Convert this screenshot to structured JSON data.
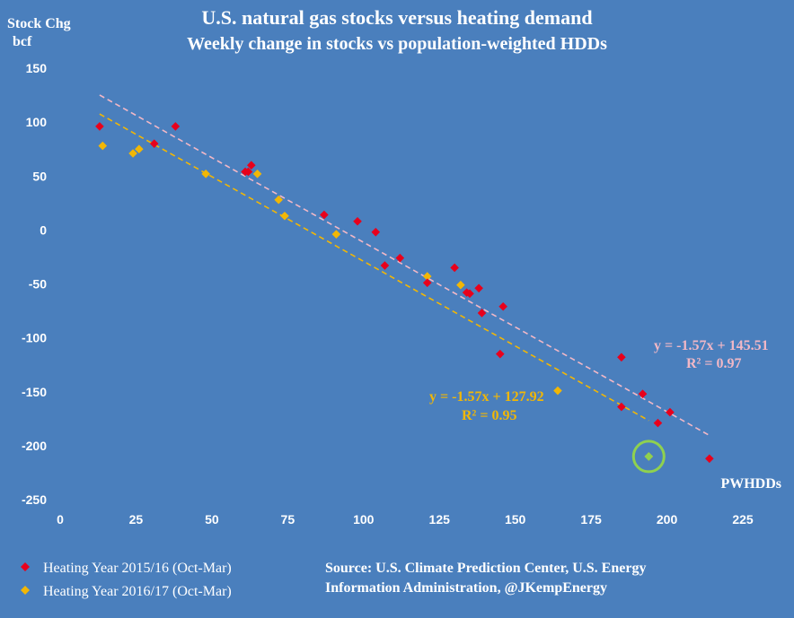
{
  "chart_data": {
    "type": "scatter",
    "title": "U.S. natural gas stocks versus heating demand",
    "subtitle": "Weekly change in stocks vs population-weighted HDDs",
    "ylabel_line1": "Stock Chg",
    "ylabel_line2": "bcf",
    "xlabel": "PWHDDs",
    "xlim": [
      0,
      225
    ],
    "ylim": [
      -250,
      150
    ],
    "x_ticks": [
      0,
      25,
      50,
      75,
      100,
      125,
      150,
      175,
      200,
      225
    ],
    "y_ticks": [
      150,
      100,
      50,
      0,
      -50,
      -100,
      -150,
      -200,
      -250
    ],
    "grid": false,
    "legend_position": "bottom-left",
    "series": [
      {
        "name": "Heating Year 2015/16 (Oct-Mar)",
        "color": "#e8001c",
        "marker": "diamond",
        "points": [
          [
            13,
            96
          ],
          [
            31,
            80
          ],
          [
            38,
            96
          ],
          [
            61,
            54
          ],
          [
            62,
            54
          ],
          [
            63,
            60
          ],
          [
            87,
            14
          ],
          [
            98,
            8
          ],
          [
            104,
            -2
          ],
          [
            107,
            -33
          ],
          [
            112,
            -26
          ],
          [
            121,
            -49
          ],
          [
            130,
            -35
          ],
          [
            134,
            -58
          ],
          [
            135,
            -59
          ],
          [
            138,
            -54
          ],
          [
            139,
            -77
          ],
          [
            145,
            -115
          ],
          [
            146,
            -71
          ],
          [
            185,
            -118
          ],
          [
            185,
            -164
          ],
          [
            192,
            -152
          ],
          [
            197,
            -179
          ],
          [
            201,
            -169
          ],
          [
            214,
            -212
          ]
        ],
        "trendline": {
          "slope": -1.57,
          "intercept": 145.51,
          "x_range": [
            13,
            214
          ],
          "color": "#f2b8c6",
          "equation": "y = -1.57x + 145.51",
          "r2": "R² = 0.97"
        }
      },
      {
        "name": "Heating Year 2016/17 (Oct-Mar)",
        "color": "#f2b705",
        "marker": "diamond",
        "points": [
          [
            14,
            78
          ],
          [
            24,
            71
          ],
          [
            26,
            75
          ],
          [
            48,
            52
          ],
          [
            65,
            52
          ],
          [
            72,
            28
          ],
          [
            74,
            13
          ],
          [
            91,
            -4
          ],
          [
            121,
            -43
          ],
          [
            132,
            -51
          ],
          [
            164,
            -149
          ],
          [
            194,
            -210
          ]
        ],
        "trendline": {
          "slope": -1.57,
          "intercept": 127.92,
          "x_range": [
            13,
            194
          ],
          "color": "#f2b705",
          "equation": "y = -1.57x + 127.92",
          "r2": "R² = 0.95"
        }
      }
    ],
    "highlight": {
      "x": 194,
      "y": -210,
      "color": "#8fd14f"
    },
    "source_line1": "Source: U.S. Climate Prediction Center, U.S. Energy",
    "source_line2": "Information Administration, @JKempEnergy"
  }
}
